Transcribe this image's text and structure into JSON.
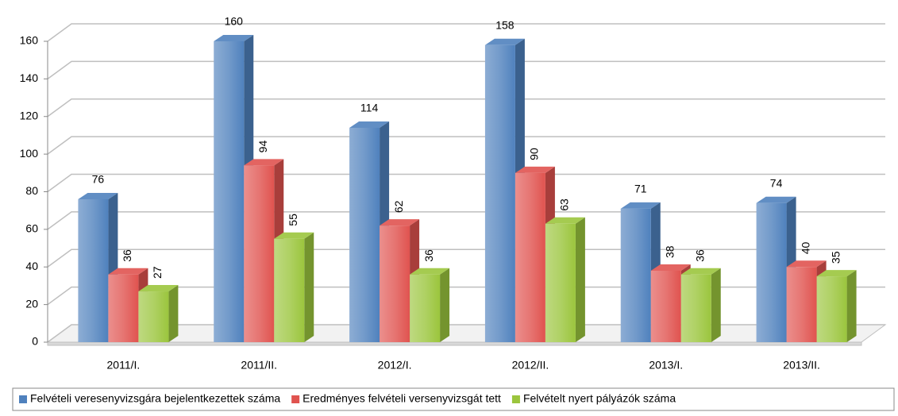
{
  "chart_data": {
    "type": "bar3d",
    "categories": [
      "2011/I.",
      "2011/II.",
      "2012/I.",
      "2012/II.",
      "2013/I.",
      "2013/II."
    ],
    "series": [
      {
        "name": "Felvételi veresenyvizsgára bejelentkezettek száma",
        "color": "#4f81bd",
        "values": [
          76,
          160,
          114,
          158,
          71,
          74
        ]
      },
      {
        "name": "Eredményes felvételi versenyvizsgát tett",
        "color": "#e0534f",
        "values": [
          36,
          94,
          62,
          90,
          38,
          40
        ]
      },
      {
        "name": "Felvételt nyert pályázók száma",
        "color": "#9bc53d",
        "values": [
          27,
          55,
          36,
          63,
          36,
          35
        ]
      }
    ],
    "ylim": [
      0,
      160
    ],
    "yticks": [
      0,
      20,
      40,
      60,
      80,
      100,
      120,
      140,
      160
    ],
    "grid": true,
    "legend": "bottom"
  }
}
